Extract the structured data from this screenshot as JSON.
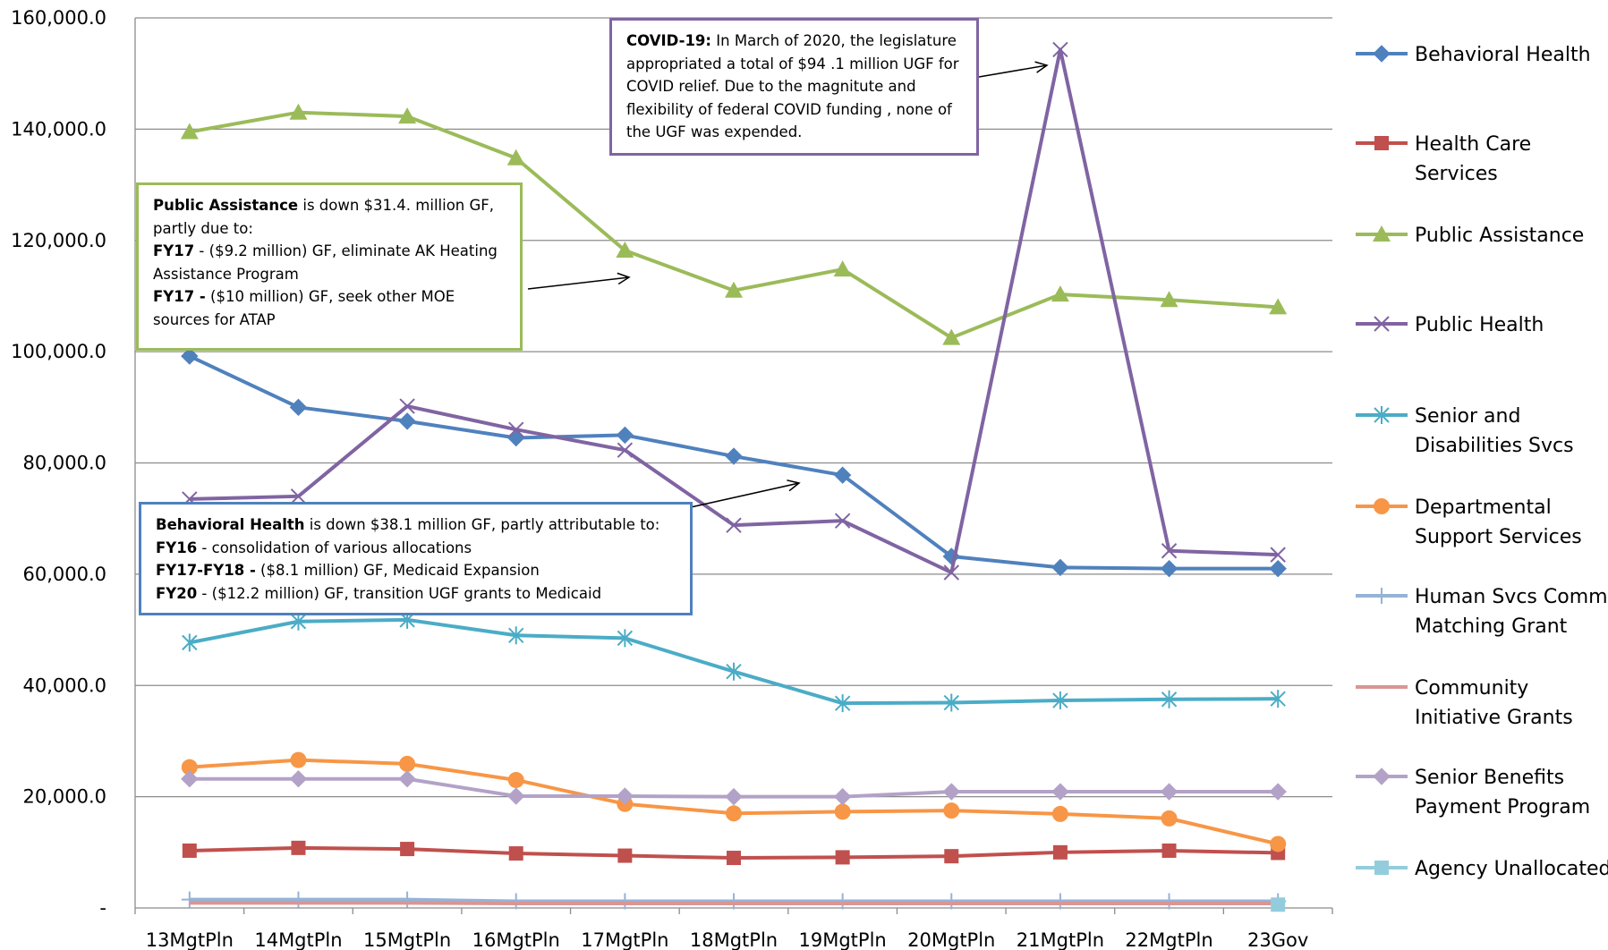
{
  "chart_data": {
    "type": "line",
    "categories": [
      "13MgtPln",
      "14MgtPln",
      "15MgtPln",
      "16MgtPln",
      "17MgtPln",
      "18MgtPln",
      "19MgtPln",
      "20MgtPln",
      "21MgtPln",
      "22MgtPln",
      "23Gov"
    ],
    "ylim": [
      0,
      160000
    ],
    "y_ticks": [
      "-",
      "20,000.0",
      "40,000.0",
      "60,000.0",
      "80,000.0",
      "100,000.0",
      "120,000.0",
      "140,000.0",
      "160,000.0"
    ],
    "grid": true,
    "legend_position": "right",
    "series": [
      {
        "name": "Behavioral Health",
        "color": "#4f81bd",
        "marker": "diamond",
        "values": [
          99200,
          90000,
          87500,
          84500,
          85000,
          81200,
          77800,
          63200,
          61200,
          61000,
          61000
        ]
      },
      {
        "name": "Health Care Services",
        "color": "#c0504d",
        "marker": "square",
        "values": [
          10300,
          10800,
          10600,
          9800,
          9400,
          9000,
          9100,
          9300,
          10000,
          10300,
          9900
        ]
      },
      {
        "name": "Public Assistance",
        "color": "#9bbb59",
        "marker": "triangle",
        "values": [
          139500,
          143000,
          142300,
          134800,
          118200,
          111000,
          114800,
          102500,
          110300,
          109300,
          108000
        ]
      },
      {
        "name": "Public Health",
        "color": "#8064a2",
        "marker": "x",
        "values": [
          73500,
          74000,
          90200,
          86000,
          82300,
          68800,
          69600,
          60300,
          154300,
          64200,
          63500
        ]
      },
      {
        "name": "Senior and Disabilities Svcs",
        "color": "#4bacc6",
        "marker": "star",
        "values": [
          47700,
          51500,
          51800,
          49000,
          48500,
          42500,
          36800,
          36900,
          37300,
          37500,
          37600
        ]
      },
      {
        "name": "Departmental Support Services",
        "color": "#f79646",
        "marker": "circle",
        "values": [
          25300,
          26600,
          25900,
          23000,
          18700,
          17000,
          17300,
          17500,
          16900,
          16100,
          11500
        ]
      },
      {
        "name": "Human Svcs Comm Matching Grant",
        "color": "#95b3d7",
        "marker": "plus",
        "values": [
          1500,
          1500,
          1500,
          1200,
          1200,
          1200,
          1200,
          1200,
          1200,
          1200,
          1200
        ]
      },
      {
        "name": "Community Initiative Grants",
        "color": "#d99694",
        "marker": "none",
        "values": [
          900,
          900,
          900,
          800,
          800,
          800,
          800,
          800,
          800,
          800,
          800
        ]
      },
      {
        "name": "Senior Benefits Payment Program",
        "color": "#b3a2c7",
        "marker": "diamond",
        "values": [
          23200,
          23200,
          23200,
          20100,
          20100,
          20000,
          20000,
          20900,
          20900,
          20900,
          20900
        ]
      },
      {
        "name": "Agency Unallocated",
        "color": "#93cddd",
        "marker": "square",
        "values": [
          null,
          null,
          null,
          null,
          null,
          null,
          null,
          null,
          null,
          null,
          600
        ]
      }
    ],
    "legend_lines": [
      [
        "Behavioral Health"
      ],
      [
        "Health Care",
        "Services"
      ],
      [
        "Public Assistance"
      ],
      [
        "Public Health"
      ],
      [
        "Senior and",
        "Disabilities Svcs"
      ],
      [
        "Departmental",
        "Support Services"
      ],
      [
        "Human Svcs Comm",
        "Matching Grant"
      ],
      [
        "Community",
        "Initiative Grants"
      ],
      [
        "Senior Benefits",
        "Payment Program"
      ],
      [
        "Agency Unallocated"
      ]
    ]
  },
  "annotations": {
    "covid": {
      "head": "COVID-19:",
      "body": "  In March of 2020, the legislature appropriated a total of $94 .1 million UGF for COVID relief. Due to the magnitute and flexibility of federal COVID funding , none of the UGF was expended."
    },
    "public_assistance": {
      "head": "Public Assistance",
      "body": " is down $31.4. million GF, partly due to:",
      "l1_head": "FY17",
      "l1_body": " -  ($9.2 million)  GF, eliminate AK Heating Assistance Program",
      "l2_head": "FY17 -",
      "l2_body": " ($10 million) GF, seek other MOE sources for ATAP"
    },
    "behavioral_health": {
      "head": "Behavioral Health",
      "body": " is down $38.1 million GF, partly attributable to:",
      "l1_head": "FY16",
      "l1_body": " -  consolidation of various allocations",
      "l2_head": "FY17-FY18  -",
      "l2_body": "  ($8.1 million) GF, Medicaid Expansion",
      "l3_head": "FY20",
      "l3_body": " - ($12.2 million) GF, transition UGF grants to Medicaid"
    }
  }
}
